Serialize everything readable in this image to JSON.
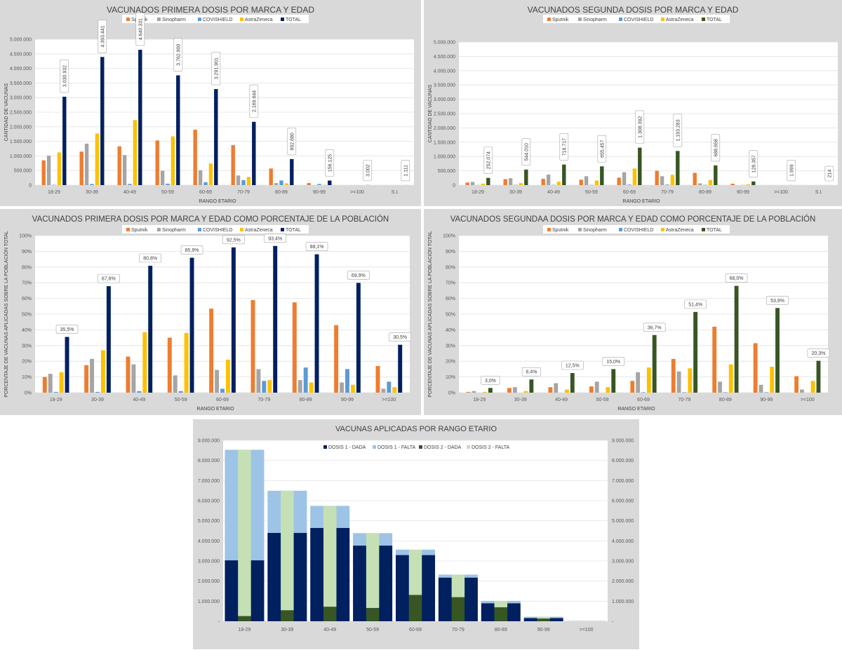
{
  "colors": {
    "sputnik": "#ed7d31",
    "sinopharm": "#a5a5a5",
    "covishield": "#5b9bd5",
    "astrazeneca": "#ffc000",
    "total_first": "#002060",
    "total_second": "#375623",
    "dose1_given": "#002060",
    "dose1_missing": "#9dc3e6",
    "dose2_given": "#375623",
    "dose2_missing": "#c5e0b4",
    "panel_bg": "#d9d9d9",
    "plot_bg": "#ffffff"
  },
  "chart_data": [
    {
      "type": "bar",
      "title": "VACUNADOS PRIMERA DOSIS POR MARCA Y EDAD",
      "xlabel": "RANGO  ETARIO",
      "ylabel": "CANTIDAD  DE VACUNAS",
      "ylim": [
        0,
        5000000
      ],
      "yticks": [
        0,
        500000,
        1000000,
        1500000,
        2000000,
        2500000,
        3000000,
        3500000,
        4000000,
        4500000,
        5000000
      ],
      "ytick_labels": [
        "0",
        "500.000",
        "1.000.000",
        "1.500.000",
        "2.000.000",
        "2.500.000",
        "3.000.000",
        "3.500.000",
        "4.000.000",
        "4.500.000",
        "5.000.000"
      ],
      "grid": true,
      "legend": "top",
      "categories": [
        "18-29",
        "30-39",
        "40-49",
        "50-59",
        "60-69",
        "70-79",
        "80-89",
        "90-99",
        ">=100",
        "S.I."
      ],
      "series": [
        {
          "name": "Sputnik",
          "color_key": "sputnik",
          "values": [
            850000,
            1150000,
            1330000,
            1530000,
            1900000,
            1370000,
            570000,
            70000,
            0,
            0
          ]
        },
        {
          "name": "Sinopharm",
          "color_key": "sinopharm",
          "values": [
            1010000,
            1420000,
            1030000,
            490000,
            510000,
            330000,
            70000,
            0,
            0,
            0
          ]
        },
        {
          "name": "COVISHIELD",
          "color_key": "covishield",
          "values": [
            10000,
            40000,
            40000,
            50000,
            100000,
            170000,
            160000,
            40000,
            0,
            0
          ]
        },
        {
          "name": "AstraZeneca",
          "color_key": "astrazeneca",
          "values": [
            1120000,
            1770000,
            2230000,
            1670000,
            740000,
            280000,
            60000,
            10000,
            0,
            0
          ]
        },
        {
          "name": "TOTAL",
          "color_key": "total_first",
          "values": [
            3030932,
            4393441,
            4640331,
            3762900,
            3291901,
            2169644,
            892680,
            156125,
            3002,
            1111
          ],
          "labels": [
            "3.030.932",
            "4.393.441",
            "4.640.331",
            "3.762.900",
            "3.291.901",
            "2.169.644",
            "892.680",
            "156.125",
            "3.002",
            "1.111"
          ]
        }
      ]
    },
    {
      "type": "bar",
      "title": "VACUNADOS SEGUNDA DOSIS POR MARCA Y EDAD",
      "xlabel": "RANGO  ETARIO",
      "ylabel": "CANTIDAD  DE VACUNAS",
      "ylim": [
        0,
        5000000
      ],
      "yticks": [
        0,
        500000,
        1000000,
        1500000,
        2000000,
        2500000,
        3000000,
        3500000,
        4000000,
        4500000,
        5000000
      ],
      "ytick_labels": [
        "0",
        "500.000",
        "1.000.000",
        "1.500.000",
        "2.000.000",
        "2.500.000",
        "3.000.000",
        "3.500.000",
        "4.000.000",
        "4.500.000",
        "5.000.000"
      ],
      "grid": true,
      "legend": "top",
      "categories": [
        "18-29",
        "30-39",
        "40-49",
        "50-59",
        "60-69",
        "70-79",
        "80-89",
        "90-99",
        ">=100",
        "S.I."
      ],
      "series": [
        {
          "name": "Sputnik",
          "color_key": "sputnik",
          "values": [
            90000,
            210000,
            220000,
            190000,
            260000,
            500000,
            430000,
            50000,
            0,
            0
          ]
        },
        {
          "name": "Sinopharm",
          "color_key": "sinopharm",
          "values": [
            110000,
            240000,
            370000,
            310000,
            450000,
            310000,
            60000,
            0,
            0,
            0
          ]
        },
        {
          "name": "COVISHIELD",
          "color_key": "covishield",
          "values": [
            5000,
            10000,
            10000,
            10000,
            20000,
            20000,
            10000,
            5000,
            0,
            0
          ]
        },
        {
          "name": "AstraZeneca",
          "color_key": "astrazeneca",
          "values": [
            50000,
            70000,
            120000,
            160000,
            580000,
            360000,
            180000,
            30000,
            0,
            0
          ]
        },
        {
          "name": "TOTAL",
          "color_key": "total_second",
          "values": [
            252074,
            544010,
            718717,
            655457,
            1308392,
            1193283,
            688658,
            128357,
            1999,
            214
          ],
          "labels": [
            "252.074",
            "544.010",
            "718.717",
            "655.457",
            "1.308.392",
            "1.193.283",
            "688.658",
            "128.357",
            "1.999",
            "214"
          ]
        }
      ]
    },
    {
      "type": "bar",
      "title": "VACUNADOS PRIMERA DOSIS POR MARCA Y EDAD COMO PORCENTAJE DE LA POBLACIÓN",
      "xlabel": "RANGO  ETARIO",
      "ylabel": "PORCENTAJE  DE VACUNAS  APLICADAS  SOBRE  LA POBLACIÓN TOTAL",
      "ylim": [
        0,
        100
      ],
      "yticks": [
        0,
        10,
        20,
        30,
        40,
        50,
        60,
        70,
        80,
        90,
        100
      ],
      "ytick_labels": [
        "0%",
        "10%",
        "20%",
        "30%",
        "40%",
        "50%",
        "60%",
        "70%",
        "80%",
        "90%",
        "100%"
      ],
      "grid": true,
      "legend": "top",
      "categories": [
        "18-29",
        "30-39",
        "40-49",
        "50-59",
        "60-69",
        "70-79",
        "80-89",
        "90-99",
        ">=100"
      ],
      "series": [
        {
          "name": "Sputnik",
          "color_key": "sputnik",
          "values": [
            10,
            17.5,
            23,
            35,
            53.5,
            59,
            57.5,
            43,
            17
          ]
        },
        {
          "name": "Sinopharm",
          "color_key": "sinopharm",
          "values": [
            12,
            21.5,
            18,
            11,
            14.5,
            15,
            8,
            6.5,
            2.5
          ]
        },
        {
          "name": "COVISHIELD",
          "color_key": "covishield",
          "values": [
            0.5,
            0.5,
            1,
            1,
            2.5,
            7.5,
            16,
            15,
            7
          ]
        },
        {
          "name": "AstraZeneca",
          "color_key": "astrazeneca",
          "values": [
            13,
            27,
            38.5,
            38,
            21,
            8,
            6.5,
            5,
            3.5
          ]
        },
        {
          "name": "TOTAL",
          "color_key": "total_first",
          "values": [
            35.5,
            67.8,
            80.8,
            85.9,
            92.5,
            93.4,
            88.1,
            69.9,
            30.5
          ],
          "labels": [
            "35,5%",
            "67,8%",
            "80,8%",
            "85,9%",
            "92,5%",
            "93,4%",
            "88,1%",
            "69,9%",
            "30,5%"
          ]
        }
      ]
    },
    {
      "type": "bar",
      "title": "VACUNADOS SEGUNDAA DOSIS POR MARCA Y EDAD COMO PORCENTAJE DE LA POBLACIÓN",
      "xlabel": "RANGO  ETARIO",
      "ylabel": "PORCENTAJE  DE VACUNAS  APLICADAS  SOBRE  LA POBLACIÓN TOTAL",
      "ylim": [
        0,
        100
      ],
      "yticks": [
        0,
        10,
        20,
        30,
        40,
        50,
        60,
        70,
        80,
        90,
        100
      ],
      "ytick_labels": [
        "0%",
        "10%",
        "20%",
        "30%",
        "40%",
        "50%",
        "60%",
        "70%",
        "80%",
        "90%",
        "100%"
      ],
      "grid": true,
      "legend": "top",
      "categories": [
        "18-29",
        "30-39",
        "40-49",
        "50-59",
        "60-69",
        "70-79",
        "80-89",
        "90-99",
        ">=100"
      ],
      "series": [
        {
          "name": "Sputnik",
          "color_key": "sputnik",
          "values": [
            0.5,
            3,
            3.5,
            4,
            7.5,
            21.5,
            42,
            31.5,
            10.5
          ]
        },
        {
          "name": "Sinopharm",
          "color_key": "sinopharm",
          "values": [
            1,
            3.5,
            6,
            7,
            13,
            13.5,
            7,
            5,
            2
          ]
        },
        {
          "name": "COVISHIELD",
          "color_key": "covishield",
          "values": [
            0,
            0,
            0,
            0,
            0.3,
            0.3,
            0.3,
            0.3,
            0
          ]
        },
        {
          "name": "AstraZeneca",
          "color_key": "astrazeneca",
          "values": [
            0.5,
            1,
            2,
            3.5,
            16,
            15.5,
            18,
            16.5,
            7.5
          ]
        },
        {
          "name": "TOTAL",
          "color_key": "total_second",
          "values": [
            3.0,
            8.4,
            12.5,
            15.0,
            36.7,
            51.4,
            68.0,
            53.9,
            20.3
          ],
          "labels": [
            "3,0%",
            "8,4%",
            "12,5%",
            "15,0%",
            "36,7%",
            "51,4%",
            "68,0%",
            "53,9%",
            "20,3%"
          ]
        }
      ]
    },
    {
      "type": "bar",
      "subtype": "stacked-overlapped",
      "title": "VACUNAS APLICADAS POR RANGO ETARIO",
      "xlabel": "",
      "ylabel": "",
      "ylim": [
        0,
        9000000
      ],
      "yticks": [
        0,
        1000000,
        2000000,
        3000000,
        4000000,
        5000000,
        6000000,
        7000000,
        8000000,
        9000000
      ],
      "ytick_labels": [
        "-",
        "1.000.000",
        "2.000.000",
        "3.000.000",
        "4.000.000",
        "5.000.000",
        "6.000.000",
        "7.000.000",
        "8.000.000",
        "9.000.000"
      ],
      "grid": true,
      "legend": "top",
      "categories": [
        "18-29",
        "30-39",
        "40-49",
        "50-59",
        "60-69",
        "70-79",
        "80-89",
        "90-99",
        ">=100"
      ],
      "series": [
        {
          "name": "DOSIS 1 - DADA",
          "color_key": "dose1_given",
          "values": [
            3030932,
            4393441,
            4640331,
            3762900,
            3291901,
            2169644,
            892680,
            156125,
            3002
          ]
        },
        {
          "name": "DOSIS 1 - FALTA",
          "color_key": "dose1_missing",
          "values": [
            5500000,
            2100000,
            1100000,
            620000,
            270000,
            150000,
            120000,
            67000,
            7000
          ]
        },
        {
          "name": "DOSIS 2 - DADA",
          "color_key": "dose2_given",
          "values": [
            252074,
            544010,
            718717,
            655457,
            1308392,
            1193283,
            688658,
            128357,
            1999
          ]
        },
        {
          "name": "DOSIS 2 - FALTA",
          "color_key": "dose2_missing",
          "values": [
            8280000,
            5950000,
            5020000,
            3730000,
            2250000,
            1130000,
            325000,
            95000,
            8000
          ]
        }
      ]
    }
  ]
}
